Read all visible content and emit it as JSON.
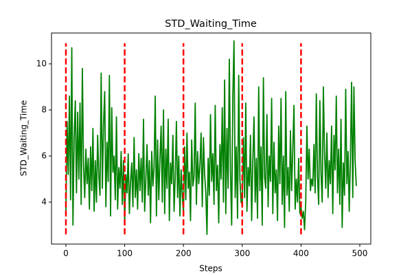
{
  "chart_data": {
    "type": "line",
    "title": "STD_Waiting_Time",
    "xlabel": "Steps",
    "ylabel": "STD_Waiting_Time",
    "xlim": [
      -24.5,
      518.7
    ],
    "ylim": [
      2.18,
      11.34
    ],
    "xticks": [
      0,
      100,
      200,
      300,
      400,
      500
    ],
    "yticks": [
      4,
      6,
      8,
      10
    ],
    "color": "green",
    "x": [
      0,
      2,
      4,
      6,
      8,
      10,
      12,
      14,
      16,
      18,
      20,
      22,
      24,
      26,
      28,
      30,
      32,
      34,
      36,
      38,
      40,
      42,
      44,
      46,
      48,
      50,
      52,
      54,
      56,
      58,
      60,
      62,
      64,
      66,
      68,
      70,
      72,
      74,
      76,
      78,
      80,
      82,
      84,
      86,
      88,
      90,
      92,
      94,
      96,
      98,
      100,
      102,
      104,
      106,
      108,
      110,
      112,
      114,
      116,
      118,
      120,
      122,
      124,
      126,
      128,
      130,
      132,
      134,
      136,
      138,
      140,
      142,
      144,
      146,
      148,
      150,
      152,
      154,
      156,
      158,
      160,
      162,
      164,
      166,
      168,
      170,
      172,
      174,
      176,
      178,
      180,
      182,
      184,
      186,
      188,
      190,
      192,
      194,
      196,
      198,
      200,
      202,
      204,
      206,
      208,
      210,
      212,
      214,
      216,
      218,
      220,
      222,
      224,
      226,
      228,
      230,
      232,
      234,
      236,
      238,
      240,
      242,
      244,
      246,
      248,
      250,
      252,
      254,
      256,
      258,
      260,
      262,
      264,
      266,
      268,
      270,
      272,
      274,
      276,
      278,
      280,
      282,
      284,
      286,
      288,
      290,
      292,
      294,
      296,
      298,
      300,
      302,
      304,
      306,
      308,
      310,
      312,
      314,
      316,
      318,
      320,
      322,
      324,
      326,
      328,
      330,
      332,
      334,
      336,
      338,
      340,
      342,
      344,
      346,
      348,
      350,
      352,
      354,
      356,
      358,
      360,
      362,
      364,
      366,
      368,
      370,
      372,
      374,
      376,
      378,
      380,
      382,
      384,
      386,
      388,
      390,
      392,
      394,
      396,
      398,
      400,
      402,
      404,
      406,
      408,
      410,
      412,
      414,
      416,
      418,
      420,
      422,
      424,
      426,
      428,
      430,
      432,
      434,
      436,
      438,
      440,
      442,
      444,
      446,
      448,
      450,
      452,
      454,
      456,
      458,
      460,
      462,
      464,
      466,
      468,
      470,
      472,
      474,
      476,
      478,
      480,
      482,
      484,
      486,
      488,
      490,
      492,
      494
    ],
    "values": [
      3.5,
      7.5,
      5.2,
      8.6,
      4.1,
      10.7,
      3.0,
      6.8,
      8.4,
      4.4,
      7.9,
      5.0,
      8.3,
      3.9,
      9.8,
      5.6,
      4.2,
      6.3,
      4.8,
      5.9,
      3.7,
      6.4,
      4.5,
      7.2,
      3.6,
      5.8,
      4.0,
      6.9,
      5.1,
      4.3,
      9.6,
      4.6,
      7.4,
      8.8,
      3.8,
      6.6,
      4.9,
      9.5,
      3.4,
      8.1,
      5.3,
      6.0,
      4.1,
      7.7,
      3.7,
      5.5,
      4.6,
      6.2,
      3.9,
      5.8,
      3.1,
      5.2,
      4.4,
      6.1,
      3.5,
      4.9,
      5.7,
      3.8,
      6.8,
      4.2,
      5.4,
      3.7,
      6.1,
      4.5,
      5.9,
      4.0,
      7.6,
      3.6,
      5.0,
      6.5,
      4.3,
      5.8,
      3.1,
      6.2,
      4.7,
      5.5,
      8.6,
      3.4,
      6.7,
      4.1,
      5.9,
      7.3,
      4.0,
      8.0,
      3.5,
      6.3,
      4.6,
      7.6,
      3.2,
      5.7,
      4.8,
      6.9,
      3.6,
      5.1,
      7.5,
      4.2,
      6.0,
      3.4,
      5.4,
      4.3,
      3.5,
      6.4,
      4.1,
      7.0,
      4.6,
      5.3,
      3.2,
      6.7,
      4.7,
      5.1,
      8.3,
      3.9,
      6.2,
      4.8,
      5.6,
      7.0,
      3.8,
      6.8,
      5.2,
      4.4,
      2.6,
      5.9,
      4.3,
      7.8,
      4.9,
      6.1,
      3.9,
      8.2,
      4.5,
      5.6,
      3.1,
      6.5,
      5.0,
      8.1,
      4.0,
      9.3,
      3.5,
      7.2,
      4.6,
      10.2,
      5.3,
      3.0,
      8.6,
      11.0,
      4.2,
      6.4,
      3.3,
      9.5,
      5.0,
      4.0,
      3.9,
      6.8,
      4.2,
      8.3,
      3.6,
      5.5,
      4.7,
      6.9,
      3.2,
      5.8,
      7.7,
      4.0,
      5.9,
      3.3,
      9.0,
      4.5,
      6.4,
      3.0,
      9.4,
      5.1,
      4.6,
      7.8,
      3.8,
      6.0,
      4.9,
      8.5,
      3.5,
      6.6,
      4.4,
      5.4,
      3.2,
      7.3,
      4.8,
      8.5,
      3.9,
      6.0,
      2.9,
      8.8,
      4.3,
      5.5,
      3.6,
      7.1,
      4.5,
      6.3,
      8.2,
      3.7,
      5.0,
      4.0,
      5.9,
      3.5,
      3.8,
      3.3,
      3.6,
      2.8,
      4.0,
      7.3,
      5.0,
      6.3,
      4.5,
      5.0,
      4.7,
      6.5,
      4.4,
      8.7,
      5.1,
      3.9,
      8.4,
      5.3,
      4.0,
      9.0,
      6.2,
      4.6,
      7.0,
      4.2,
      5.8,
      4.8,
      7.3,
      3.5,
      6.9,
      5.4,
      8.6,
      4.4,
      6.3,
      3.9,
      7.6,
      2.9,
      5.7,
      4.3,
      8.9,
      4.8,
      6.2,
      3.6,
      5.9,
      9.2,
      4.2,
      9.0,
      5.8,
      4.7
    ],
    "vlines": {
      "x": [
        0,
        100,
        200,
        300,
        400
      ],
      "ymin": 2.6,
      "ymax": 10.9,
      "color": "red"
    }
  }
}
